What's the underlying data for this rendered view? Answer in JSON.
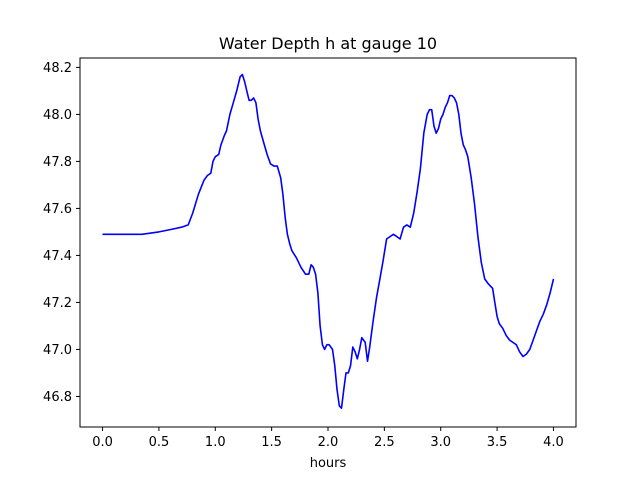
{
  "chart_data": {
    "type": "line",
    "title": "Water Depth h at gauge 10",
    "xlabel": "hours",
    "ylabel": "",
    "xlim": [
      -0.2,
      4.2
    ],
    "ylim": [
      46.67,
      48.24
    ],
    "x_ticks": [
      0.0,
      0.5,
      1.0,
      1.5,
      2.0,
      2.5,
      3.0,
      3.5,
      4.0
    ],
    "x_tick_labels": [
      "0.0",
      "0.5",
      "1.0",
      "1.5",
      "2.0",
      "2.5",
      "3.0",
      "3.5",
      "4.0"
    ],
    "y_ticks": [
      46.8,
      47.0,
      47.2,
      47.4,
      47.6,
      47.8,
      48.0,
      48.2
    ],
    "y_tick_labels": [
      "46.8",
      "47.0",
      "47.2",
      "47.4",
      "47.6",
      "47.8",
      "48.0",
      "48.2"
    ],
    "grid": false,
    "series": [
      {
        "color": "#0000ff",
        "x": [
          0.0,
          0.2,
          0.35,
          0.5,
          0.6,
          0.7,
          0.76,
          0.8,
          0.85,
          0.9,
          0.93,
          0.96,
          0.98,
          1.0,
          1.03,
          1.05,
          1.08,
          1.1,
          1.13,
          1.16,
          1.19,
          1.22,
          1.24,
          1.26,
          1.28,
          1.3,
          1.32,
          1.34,
          1.36,
          1.38,
          1.4,
          1.43,
          1.46,
          1.49,
          1.52,
          1.55,
          1.58,
          1.6,
          1.62,
          1.64,
          1.66,
          1.68,
          1.72,
          1.76,
          1.8,
          1.83,
          1.85,
          1.87,
          1.89,
          1.91,
          1.93,
          1.95,
          1.97,
          1.99,
          2.01,
          2.04,
          2.06,
          2.08,
          2.1,
          2.12,
          2.14,
          2.16,
          2.18,
          2.2,
          2.22,
          2.24,
          2.26,
          2.28,
          2.3,
          2.33,
          2.35,
          2.37,
          2.4,
          2.43,
          2.46,
          2.49,
          2.52,
          2.55,
          2.58,
          2.61,
          2.64,
          2.67,
          2.7,
          2.73,
          2.76,
          2.79,
          2.82,
          2.85,
          2.88,
          2.9,
          2.92,
          2.94,
          2.96,
          2.98,
          3.0,
          3.02,
          3.04,
          3.06,
          3.08,
          3.1,
          3.12,
          3.14,
          3.16,
          3.18,
          3.2,
          3.22,
          3.24,
          3.27,
          3.3,
          3.33,
          3.36,
          3.39,
          3.42,
          3.44,
          3.46,
          3.48,
          3.5,
          3.52,
          3.55,
          3.58,
          3.61,
          3.64,
          3.67,
          3.7,
          3.73,
          3.76,
          3.79,
          3.82,
          3.85,
          3.88,
          3.91,
          3.94,
          3.97,
          4.0
        ],
        "y": [
          47.49,
          47.49,
          47.49,
          47.5,
          47.51,
          47.52,
          47.53,
          47.58,
          47.66,
          47.72,
          47.74,
          47.75,
          47.8,
          47.82,
          47.83,
          47.87,
          47.91,
          47.93,
          48.0,
          48.05,
          48.1,
          48.16,
          48.17,
          48.14,
          48.1,
          48.06,
          48.06,
          48.07,
          48.05,
          47.98,
          47.93,
          47.88,
          47.83,
          47.79,
          47.78,
          47.78,
          47.73,
          47.66,
          47.56,
          47.49,
          47.45,
          47.42,
          47.39,
          47.35,
          47.32,
          47.32,
          47.36,
          47.35,
          47.32,
          47.24,
          47.1,
          47.02,
          47.0,
          47.02,
          47.02,
          47.0,
          46.93,
          46.83,
          46.76,
          46.75,
          46.83,
          46.9,
          46.9,
          46.93,
          47.01,
          46.99,
          46.96,
          47.0,
          47.05,
          47.03,
          46.95,
          47.01,
          47.12,
          47.22,
          47.3,
          47.38,
          47.47,
          47.48,
          47.49,
          47.48,
          47.47,
          47.52,
          47.53,
          47.52,
          47.58,
          47.67,
          47.77,
          47.92,
          48.0,
          48.02,
          48.02,
          47.95,
          47.92,
          47.94,
          47.98,
          48.0,
          48.03,
          48.05,
          48.08,
          48.08,
          48.07,
          48.05,
          48.0,
          47.92,
          47.87,
          47.85,
          47.82,
          47.73,
          47.62,
          47.48,
          47.37,
          47.3,
          47.28,
          47.27,
          47.26,
          47.2,
          47.14,
          47.11,
          47.09,
          47.06,
          47.04,
          47.03,
          47.02,
          46.99,
          46.97,
          46.98,
          47.0,
          47.04,
          47.08,
          47.12,
          47.15,
          47.19,
          47.24,
          47.3
        ]
      }
    ]
  }
}
